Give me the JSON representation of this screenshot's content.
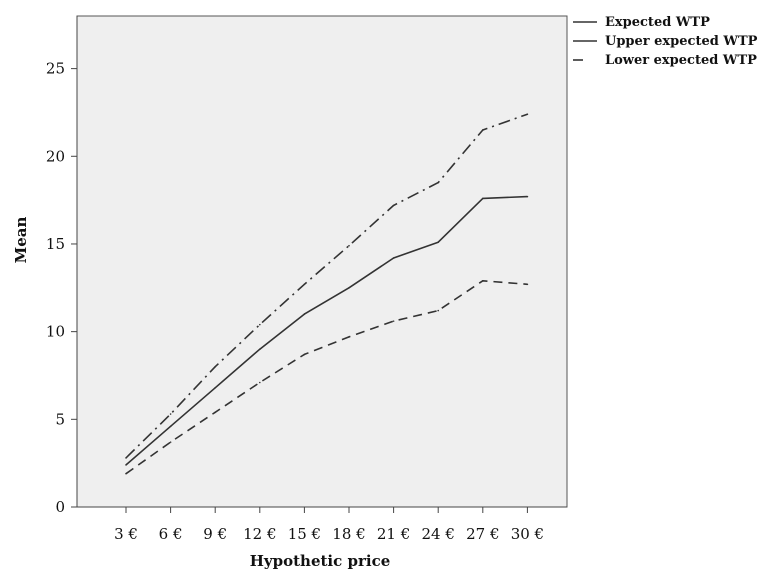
{
  "chart_data": {
    "type": "line",
    "categories": [
      "3 €",
      "6 €",
      "9 €",
      "12 €",
      "15 €",
      "18 €",
      "21 €",
      "24 €",
      "27 €",
      "30 €"
    ],
    "series": [
      {
        "name": "Expected WTP",
        "dash": "solid",
        "values": [
          2.4,
          4.6,
          6.8,
          9.0,
          11.0,
          12.5,
          14.2,
          15.1,
          17.6,
          17.7
        ]
      },
      {
        "name": "Upper expected WTP",
        "dash": "dashdot",
        "values": [
          2.8,
          5.3,
          8.0,
          10.4,
          12.7,
          14.9,
          17.2,
          18.5,
          21.5,
          22.4
        ]
      },
      {
        "name": "Lower expected WTP",
        "dash": "dash",
        "values": [
          1.9,
          3.7,
          5.4,
          7.1,
          8.7,
          9.7,
          10.6,
          11.2,
          12.9,
          12.7
        ]
      }
    ],
    "xlabel": "Hypothetic price",
    "ylabel": "Mean",
    "ylim": [
      0,
      28
    ],
    "yticks": [
      0,
      5,
      10,
      15,
      20,
      25
    ],
    "legend": "top-right",
    "grid": false,
    "colors": {
      "plot_bg": "#efefef",
      "line": "#333333",
      "axis": "#444444"
    }
  }
}
